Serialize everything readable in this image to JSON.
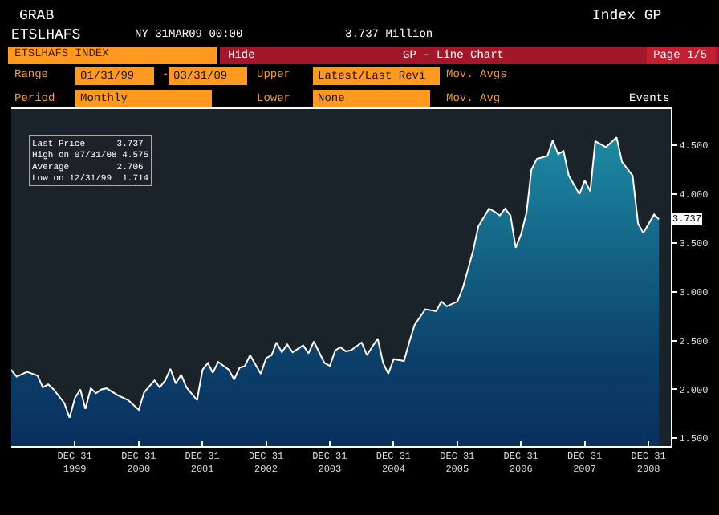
{
  "chart_data": {
    "type": "area",
    "title": "ETSLHAFS INDEX",
    "annotations": [
      "GRAB",
      "ETSLHAFS",
      "NY 31MAR09 00:00",
      "3.737 Million",
      "Index GP",
      "Hide",
      "GP - Line Chart",
      "Page 1/5",
      "Range",
      "01/31/99",
      "-",
      "03/31/09",
      "Upper",
      "Latest/Last Revi",
      "Mov. Avgs",
      "Period",
      "Monthly",
      "Lower",
      "None",
      "Mov. Avg",
      "Events",
      "Last Price      3.737",
      "High on 07/31/08 4.575",
      "Average         2.706",
      "Low on 12/31/99  1.714",
      {
        "text": "3.737",
        "y": 3.737
      }
    ],
    "x": [
      "1999-01",
      "1999-02",
      "1999-04",
      "1999-06",
      "1999-07",
      "1999-08",
      "1999-09",
      "1999-11",
      "1999-12",
      "2000-01",
      "2000-02",
      "2000-03",
      "2000-04",
      "2000-05",
      "2000-06",
      "2000-07",
      "2000-09",
      "2000-11",
      "2001-01",
      "2001-02",
      "2001-04",
      "2001-05",
      "2001-06",
      "2001-07",
      "2001-08",
      "2001-09",
      "2001-10",
      "2001-12",
      "2002-01",
      "2002-02",
      "2002-03",
      "2002-04",
      "2002-06",
      "2002-07",
      "2002-08",
      "2002-09",
      "2002-10",
      "2002-12",
      "2003-01",
      "2003-02",
      "2003-03",
      "2003-04",
      "2003-05",
      "2003-06",
      "2003-08",
      "2003-09",
      "2003-10",
      "2003-12",
      "2004-01",
      "2004-02",
      "2004-03",
      "2004-04",
      "2004-05",
      "2004-07",
      "2004-08",
      "2004-09",
      "2004-10",
      "2004-11",
      "2004-12",
      "2005-01",
      "2005-03",
      "2005-04",
      "2005-05",
      "2005-07",
      "2005-09",
      "2005-10",
      "2005-11",
      "2006-01",
      "2006-02",
      "2006-04",
      "2006-05",
      "2006-07",
      "2006-08",
      "2006-09",
      "2006-10",
      "2006-11",
      "2006-12",
      "2007-01",
      "2007-02",
      "2007-03",
      "2007-04",
      "2007-06",
      "2007-07",
      "2007-08",
      "2007-09",
      "2007-10",
      "2007-12",
      "2008-01",
      "2008-02",
      "2008-03",
      "2008-05",
      "2008-07",
      "2008-08",
      "2008-10",
      "2008-11",
      "2008-12",
      "2009-02",
      "2009-03"
    ],
    "series": [
      {
        "color": "#ffffff",
        "values": [
          2.2,
          2.13,
          2.18,
          2.14,
          2.02,
          2.05,
          2.0,
          1.86,
          1.71,
          1.91,
          2.0,
          1.8,
          2.01,
          1.96,
          2.0,
          2.01,
          1.94,
          1.89,
          1.79,
          1.97,
          2.09,
          2.02,
          2.09,
          2.21,
          2.06,
          2.15,
          2.02,
          1.89,
          2.2,
          2.27,
          2.17,
          2.28,
          2.2,
          2.1,
          2.22,
          2.24,
          2.35,
          2.16,
          2.32,
          2.35,
          2.48,
          2.38,
          2.46,
          2.38,
          2.45,
          2.37,
          2.49,
          2.27,
          2.24,
          2.4,
          2.43,
          2.39,
          2.4,
          2.48,
          2.35,
          2.44,
          2.52,
          2.27,
          2.16,
          2.31,
          2.29,
          2.49,
          2.66,
          2.82,
          2.8,
          2.9,
          2.85,
          2.9,
          3.04,
          3.42,
          3.67,
          3.85,
          3.82,
          3.78,
          3.85,
          3.78,
          3.45,
          3.59,
          3.81,
          4.25,
          4.36,
          4.39,
          4.55,
          4.41,
          4.44,
          4.19,
          4.0,
          4.14,
          4.03,
          4.54,
          4.48,
          4.58,
          4.33,
          4.19,
          3.7,
          3.6,
          3.79,
          3.74
        ]
      }
    ],
    "xlim": [
      "1999-01-01",
      "2009-05-08"
    ],
    "xticks": [
      {
        "value": "1999-12-31",
        "label": "DEC 31\n1999"
      },
      {
        "value": "2000-12-31",
        "label": "DEC 31\n2000"
      },
      {
        "value": "2001-12-31",
        "label": "DEC 31\n2001"
      },
      {
        "value": "2002-12-31",
        "label": "DEC 31\n2002"
      },
      {
        "value": "2003-12-31",
        "label": "DEC 31\n2003"
      },
      {
        "value": "2004-12-31",
        "label": "DEC 31\n2004"
      },
      {
        "value": "2005-12-31",
        "label": "DEC 31\n2005"
      },
      {
        "value": "2006-12-31",
        "label": "DEC 31\n2006"
      },
      {
        "value": "2007-12-31",
        "label": "DEC 31\n2007"
      },
      {
        "value": "2008-12-31",
        "label": "DEC 31\n2008"
      }
    ],
    "ylim": [
      1.42,
      4.87
    ],
    "yticks": [
      {
        "value": 1.5,
        "label": "1.500"
      },
      {
        "value": 2.0,
        "label": "2.000"
      },
      {
        "value": 2.5,
        "label": "2.500"
      },
      {
        "value": 3.0,
        "label": "3.000"
      },
      {
        "value": 3.5,
        "label": "3.500"
      },
      {
        "value": 4.0,
        "label": "4.000"
      },
      {
        "value": 4.5,
        "label": "4.500"
      }
    ],
    "grid": false,
    "marker": "none",
    "line_style": "solid"
  }
}
